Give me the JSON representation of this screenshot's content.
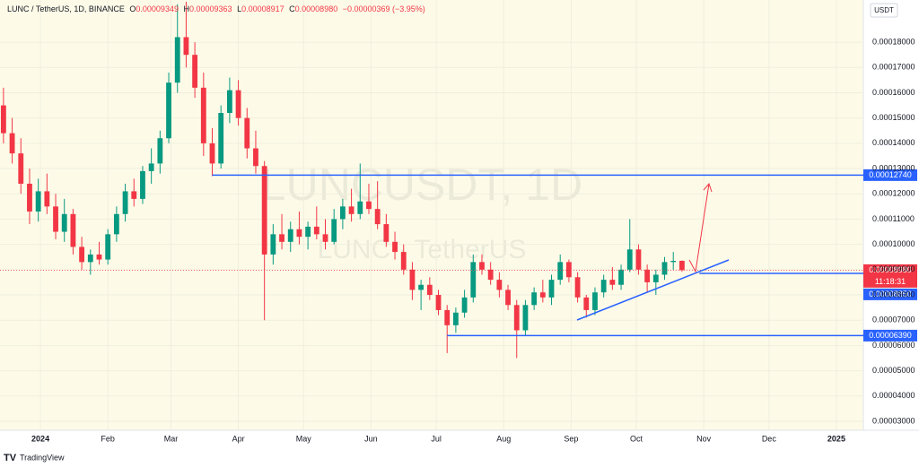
{
  "chart_data": {
    "type": "candlestick",
    "header": {
      "symbol": "LUNC / TetherUS, 1D, BINANCE",
      "o_label": "O",
      "o": "0.00009349",
      "h_label": "H",
      "h": "0.00009363",
      "l_label": "L",
      "l": "0.00008917",
      "c_label": "C",
      "c": "0.00008980",
      "change": "−0.00000369 (−3.95%)"
    },
    "currency": "USDT",
    "watermark": "LUNCUSDT, 1D",
    "watermark_sub": "LUNC · TetherUS",
    "brand": "TradingView",
    "up_color": "#089981",
    "down_color": "#f23645",
    "xlim": [
      -18.6,
      378.4
    ],
    "ylim": [
      2.645e-05,
      0.0001967
    ],
    "xticks": [
      {
        "value": 0,
        "label": "2024"
      },
      {
        "value": 31,
        "label": "Feb"
      },
      {
        "value": 60,
        "label": "Mar"
      },
      {
        "value": 91,
        "label": "Apr"
      },
      {
        "value": 121,
        "label": "May"
      },
      {
        "value": 152,
        "label": "Jun"
      },
      {
        "value": 182,
        "label": "Jul"
      },
      {
        "value": 213,
        "label": "Aug"
      },
      {
        "value": 244,
        "label": "Sep"
      },
      {
        "value": 274,
        "label": "Oct"
      },
      {
        "value": 305,
        "label": "Nov"
      },
      {
        "value": 335,
        "label": "Dec"
      },
      {
        "value": 366,
        "label": "2025"
      }
    ],
    "yticks": [
      {
        "value": 3e-05,
        "label": "0.00003000"
      },
      {
        "value": 4e-05,
        "label": "0.00004000"
      },
      {
        "value": 5e-05,
        "label": "0.00005000"
      },
      {
        "value": 6e-05,
        "label": "0.00006000"
      },
      {
        "value": 7e-05,
        "label": "0.00007000"
      },
      {
        "value": 8e-05,
        "label": "0.00008000"
      },
      {
        "value": 9e-05,
        "label": "0.00009000"
      },
      {
        "value": 0.0001,
        "label": "0.00010000"
      },
      {
        "value": 0.00011,
        "label": "0.00011000"
      },
      {
        "value": 0.00012,
        "label": "0.00012000"
      },
      {
        "value": 0.00013,
        "label": "0.00013000"
      },
      {
        "value": 0.00014,
        "label": "0.00014000"
      },
      {
        "value": 0.00015,
        "label": "0.00015000"
      },
      {
        "value": 0.00016,
        "label": "0.00016000"
      },
      {
        "value": 0.00017,
        "label": "0.00017000"
      },
      {
        "value": 0.00018,
        "label": "0.00018000"
      }
    ],
    "levels": [
      {
        "value": 0.0001274,
        "label": "0.00012740",
        "start": 79,
        "color": "#2962ff"
      },
      {
        "value": 8.85e-05,
        "label": "0.00008850",
        "start": 303,
        "color": "#2962ff"
      },
      {
        "value": 6.39e-05,
        "label": "0.00006390",
        "start": 187,
        "color": "#2962ff"
      }
    ],
    "last_price": {
      "value": 8.98e-05,
      "label": "0.00008980",
      "countdown": "11:18:31",
      "color": "#f23645"
    },
    "candles": [
      [
        -17,
        0.000155,
        0.000162,
        0.00014,
        0.000144
      ],
      [
        -13,
        0.000144,
        0.00015,
        0.000132,
        0.000136
      ],
      [
        -9,
        0.000136,
        0.000142,
        0.00012,
        0.000124
      ],
      [
        -5,
        0.000124,
        0.00013,
        0.000108,
        0.000113
      ],
      [
        -1,
        0.000113,
        0.000126,
        0.000109,
        0.000121
      ],
      [
        3,
        0.000121,
        0.000128,
        0.000112,
        0.000115
      ],
      [
        7,
        0.000115,
        0.00012,
        0.000102,
        0.000105
      ],
      [
        11,
        0.000105,
        0.000118,
        0.000101,
        0.000112
      ],
      [
        15,
        0.000112,
        0.000114,
        9.6e-05,
        9.9e-05
      ],
      [
        19,
        9.9e-05,
        0.000103,
        9e-05,
        9.3e-05
      ],
      [
        23,
        9.3e-05,
        9.8e-05,
        8.8e-05,
        9.6e-05
      ],
      [
        27,
        9.6e-05,
        0.000101,
        9.2e-05,
        9.4e-05
      ],
      [
        31,
        9.4e-05,
        0.000106,
        9.2e-05,
        0.000104
      ],
      [
        35,
        0.000104,
        0.000115,
        0.000101,
        0.000112
      ],
      [
        39,
        0.000112,
        0.000124,
        0.000109,
        0.000121
      ],
      [
        43,
        0.000121,
        0.000126,
        0.000115,
        0.000118
      ],
      [
        47,
        0.000118,
        0.000131,
        0.000116,
        0.000129
      ],
      [
        51,
        0.000129,
        0.000138,
        0.000124,
        0.000132
      ],
      [
        55,
        0.000132,
        0.000145,
        0.000128,
        0.000142
      ],
      [
        59,
        0.000142,
        0.000168,
        0.00014,
        0.000164
      ],
      [
        63,
        0.000164,
        0.000195,
        0.00016,
        0.000182
      ],
      [
        67,
        0.000182,
        0.000196,
        0.00017,
        0.000175
      ],
      [
        71,
        0.000175,
        0.00018,
        0.000158,
        0.000162
      ],
      [
        75,
        0.000162,
        0.000168,
        0.000135,
        0.00014
      ],
      [
        79,
        0.00014,
        0.000146,
        0.000127,
        0.000132
      ],
      [
        83,
        0.000132,
        0.000155,
        0.00013,
        0.000152
      ],
      [
        87,
        0.000152,
        0.000166,
        0.000148,
        0.000161
      ],
      [
        91,
        0.000161,
        0.000165,
        0.000147,
        0.00015
      ],
      [
        95,
        0.00015,
        0.000154,
        0.000134,
        0.000138
      ],
      [
        99,
        0.000138,
        0.000145,
        0.000128,
        0.000131
      ],
      [
        103,
        0.000131,
        0.000133,
        7e-05,
        9.6e-05
      ],
      [
        107,
        9.6e-05,
        0.000108,
        9.2e-05,
        0.000104
      ],
      [
        111,
        0.000104,
        0.000112,
        9.8e-05,
        0.000101
      ],
      [
        115,
        0.000101,
        0.000109,
        9.7e-05,
        0.000106
      ],
      [
        119,
        0.000106,
        0.000113,
        0.0001,
        0.000103
      ],
      [
        123,
        0.000103,
        0.000109,
        9.8e-05,
        0.000107
      ],
      [
        127,
        0.000107,
        0.000115,
        0.000102,
        0.000104
      ],
      [
        131,
        0.000104,
        0.00011,
        9.8e-05,
        0.000101
      ],
      [
        135,
        0.000101,
        0.000114,
        0.0001,
        0.00011
      ],
      [
        139,
        0.00011,
        0.000118,
        0.000106,
        0.000115
      ],
      [
        143,
        0.000115,
        0.000122,
        0.000109,
        0.000112
      ],
      [
        147,
        0.000112,
        0.000132,
        0.00011,
        0.000117
      ],
      [
        151,
        0.000117,
        0.000124,
        0.000112,
        0.000114
      ],
      [
        155,
        0.000114,
        0.000125,
        0.000106,
        0.000108
      ],
      [
        159,
        0.000108,
        0.000112,
        9.9e-05,
        0.000101
      ],
      [
        163,
        0.000101,
        0.000105,
        9.4e-05,
        9.7e-05
      ],
      [
        167,
        9.7e-05,
        0.0001,
        8.8e-05,
        9e-05
      ],
      [
        171,
        9e-05,
        9.3e-05,
        7.8e-05,
        8.2e-05
      ],
      [
        175,
        8.2e-05,
        8.6e-05,
        7.4e-05,
        8.4e-05
      ],
      [
        179,
        8.4e-05,
        8.7e-05,
        7.8e-05,
        8e-05
      ],
      [
        183,
        8e-05,
        8.2e-05,
        7.2e-05,
        7.4e-05
      ],
      [
        187,
        7.4e-05,
        7.6e-05,
        5.7e-05,
        6.8e-05
      ],
      [
        191,
        6.8e-05,
        7.5e-05,
        6.5e-05,
        7.3e-05
      ],
      [
        195,
        7.3e-05,
        8.2e-05,
        7.1e-05,
        7.9e-05
      ],
      [
        199,
        7.9e-05,
        9.6e-05,
        7.7e-05,
        9.3e-05
      ],
      [
        203,
        9.3e-05,
        9.6e-05,
        8.8e-05,
        9e-05
      ],
      [
        207,
        9e-05,
        9.3e-05,
        8.4e-05,
        8.6e-05
      ],
      [
        211,
        8.6e-05,
        8.9e-05,
        7.9e-05,
        8.2e-05
      ],
      [
        215,
        8.2e-05,
        8.4e-05,
        7.4e-05,
        7.6e-05
      ],
      [
        219,
        7.6e-05,
        7.8e-05,
        5.5e-05,
        6.6e-05
      ],
      [
        223,
        6.6e-05,
        7.8e-05,
        6.4e-05,
        7.6e-05
      ],
      [
        227,
        7.6e-05,
        8.3e-05,
        7.4e-05,
        8.1e-05
      ],
      [
        231,
        8.1e-05,
        8.6e-05,
        7.7e-05,
        7.9e-05
      ],
      [
        235,
        7.9e-05,
        8.8e-05,
        7.6e-05,
        8.6e-05
      ],
      [
        239,
        8.6e-05,
        9.6e-05,
        8.4e-05,
        9.3e-05
      ],
      [
        243,
        9.3e-05,
        9.4e-05,
        8.5e-05,
        8.7e-05
      ],
      [
        247,
        8.7e-05,
        8.9e-05,
        7.7e-05,
        7.9e-05
      ],
      [
        251,
        7.9e-05,
        8e-05,
        7.1e-05,
        7.4e-05
      ],
      [
        255,
        7.4e-05,
        8.3e-05,
        7.2e-05,
        8.1e-05
      ],
      [
        259,
        8.1e-05,
        8.8e-05,
        7.9e-05,
        8.6e-05
      ],
      [
        263,
        8.6e-05,
        9.1e-05,
        8.2e-05,
        8.4e-05
      ],
      [
        267,
        8.4e-05,
        9.2e-05,
        8.2e-05,
        9e-05
      ],
      [
        271,
        9e-05,
        0.00011,
        8.9e-05,
        9.8e-05
      ],
      [
        275,
        9.8e-05,
        0.0001,
        8.8e-05,
        9e-05
      ],
      [
        279,
        9e-05,
        9.2e-05,
        8.1e-05,
        8.5e-05
      ],
      [
        283,
        8.5e-05,
        9e-05,
        8e-05,
        8.8e-05
      ],
      [
        287,
        8.8e-05,
        9.5e-05,
        8.6e-05,
        9.3e-05
      ],
      [
        291,
        9.3e-05,
        9.7e-05,
        9e-05,
        9.349e-05
      ],
      [
        295,
        9.349e-05,
        9.363e-05,
        8.917e-05,
        8.98e-05
      ]
    ]
  }
}
